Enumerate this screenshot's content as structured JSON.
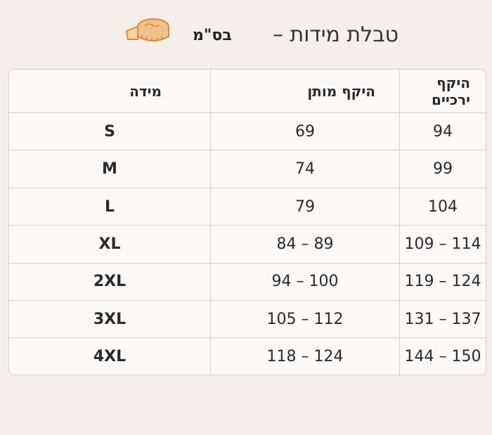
{
  "title": {
    "main": "טבלת מידות –",
    "unit": "בס\"מ",
    "icon": "measuring-tape-icon"
  },
  "table": {
    "headers": [
      "מידה",
      "היקף מותן",
      "היקף ירכיים"
    ],
    "rows": [
      {
        "size": "S",
        "waist": "69",
        "hips": "94"
      },
      {
        "size": "M",
        "waist": "74",
        "hips": "99"
      },
      {
        "size": "L",
        "waist": "79",
        "hips": "104"
      },
      {
        "size": "XL",
        "waist": "84 – 89",
        "hips": "109 – 114"
      },
      {
        "size": "2XL",
        "waist": "94 – 100",
        "hips": "119 – 124"
      },
      {
        "size": "3XL",
        "waist": "105 – 112",
        "hips": "131 – 137"
      },
      {
        "size": "4XL",
        "waist": "118 – 124",
        "hips": "144 – 150"
      }
    ]
  },
  "colors": {
    "background": "#f5eeea",
    "table": "#fbf8f6",
    "tape": "#e8a35a"
  }
}
